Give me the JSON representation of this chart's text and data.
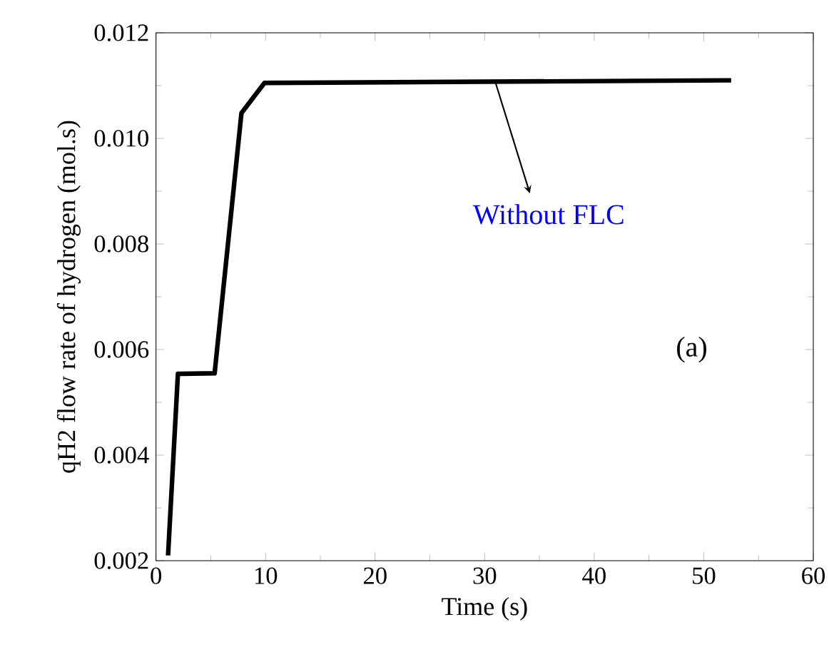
{
  "chart_data": {
    "type": "line",
    "xlabel": "Time (s)",
    "ylabel": "qH2 flow rate of hydrogen (mol.s)",
    "x": [
      1.1,
      2.0,
      5.35,
      7.8,
      9.9,
      52.5
    ],
    "series": [
      {
        "color": "#000000",
        "values": [
          0.0021,
          0.00554,
          0.00555,
          0.01048,
          0.01105,
          0.0111
        ]
      }
    ],
    "xlim": [
      0,
      60
    ],
    "ylim": [
      0.002,
      0.012
    ],
    "xticks": [
      0,
      10,
      20,
      30,
      40,
      50,
      60
    ],
    "yticks": [
      {
        "value": 0.002,
        "label": "0.002"
      },
      {
        "value": 0.004,
        "label": "0.004"
      },
      {
        "value": 0.006,
        "label": "0.006"
      },
      {
        "value": 0.008,
        "label": "0.008"
      },
      {
        "value": 0.01,
        "label": "0.010"
      },
      {
        "value": 0.012,
        "label": "0.012"
      }
    ],
    "annotations": [
      {
        "text": "Without FLC",
        "x": 31,
        "y": 0.01105
      },
      "(a)"
    ],
    "marker": "none",
    "line_style": "solid"
  }
}
